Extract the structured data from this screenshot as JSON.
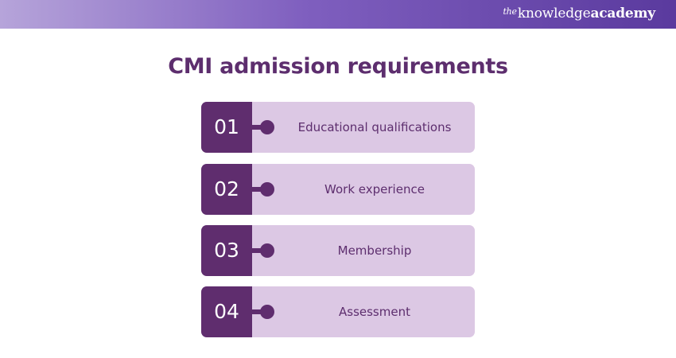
{
  "header": {
    "brand_prefix": "the",
    "brand_word1": "knowledge",
    "brand_word2": "academy"
  },
  "title": "CMI admission requirements",
  "steps": [
    {
      "number": "01",
      "label": "Educational qualifications"
    },
    {
      "number": "02",
      "label": "Work experience"
    },
    {
      "number": "03",
      "label": "Membership"
    },
    {
      "number": "04",
      "label": "Assessment"
    }
  ],
  "colors": {
    "dark_purple": "#5f2d6e",
    "light_purple": "#dcc8e4",
    "title_text": "#5d2e6e",
    "header_gradient_start": "#b6a4da",
    "header_gradient_end": "#5a3a9e"
  }
}
